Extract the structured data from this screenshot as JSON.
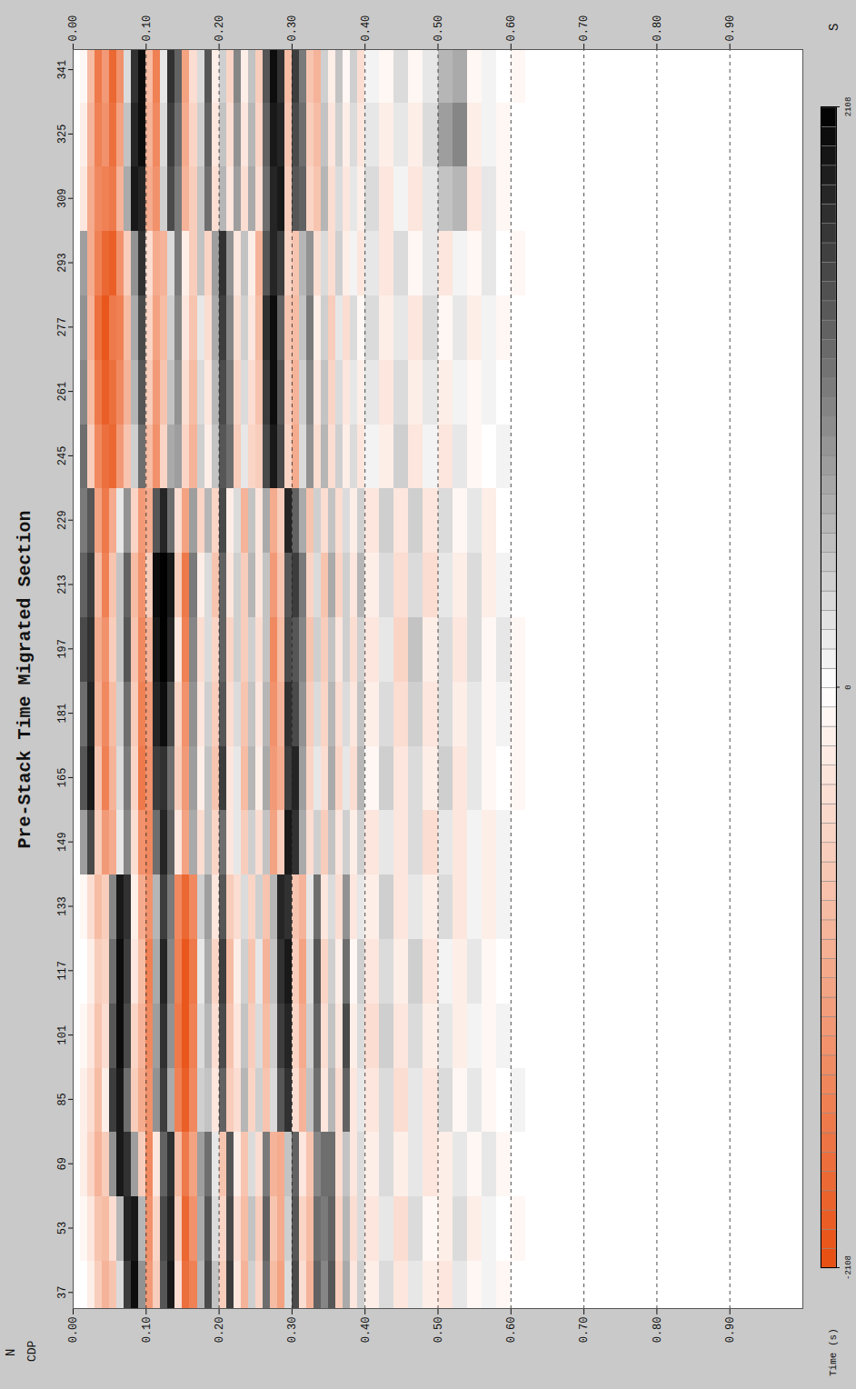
{
  "chart_data": {
    "type": "heatmap",
    "title": "Pre-Stack Time Migrated Section",
    "x_label": "CDP",
    "y_label": "Time (s)",
    "annotations": [
      "N",
      "S"
    ],
    "xlim": [
      33,
      346
    ],
    "xticks": [
      37,
      53,
      69,
      85,
      101,
      117,
      133,
      149,
      165,
      181,
      197,
      213,
      229,
      245,
      261,
      277,
      293,
      309,
      325,
      341
    ],
    "ylim": [
      0,
      1.0
    ],
    "yticks": [
      {
        "value": 0,
        "label": "0.00"
      },
      {
        "value": 0.1,
        "label": "0.10"
      },
      {
        "value": 0.2,
        "label": "0.20"
      },
      {
        "value": 0.3,
        "label": "0.30"
      },
      {
        "value": 0.4,
        "label": "0.40"
      },
      {
        "value": 0.5,
        "label": "0.50"
      },
      {
        "value": 0.6,
        "label": "0.60"
      },
      {
        "value": 0.7,
        "label": "0.70"
      },
      {
        "value": 0.8,
        "label": "0.80"
      },
      {
        "value": 0.9,
        "label": "0.90"
      }
    ],
    "grid": true,
    "cdp": [
      37,
      53,
      69,
      85,
      101,
      117,
      133,
      149,
      165,
      181,
      197,
      213,
      229,
      245,
      261,
      277,
      293,
      309,
      325,
      341
    ],
    "time": [
      0,
      0.01,
      0.02,
      0.03,
      0.04,
      0.05,
      0.06,
      0.07,
      0.08,
      0.09,
      0.1,
      0.11,
      0.12,
      0.13,
      0.14,
      0.15,
      0.16,
      0.17,
      0.18,
      0.19,
      0.2,
      0.21,
      0.22,
      0.23,
      0.24,
      0.25,
      0.26,
      0.27,
      0.28,
      0.29,
      0.3,
      0.31,
      0.32,
      0.33,
      0.34,
      0.35,
      0.36,
      0.37,
      0.38,
      0.39,
      0.4,
      0.42,
      0.44,
      0.46,
      0.48,
      0.5,
      0.52,
      0.54,
      0.56,
      0.58,
      0.6
    ],
    "amplitude": [
      [
        0,
        0,
        -200,
        -600,
        -900,
        -700,
        300,
        1600,
        2000,
        900,
        -1200,
        -600,
        1400,
        1900,
        -400,
        -1700,
        -1500,
        600,
        1500,
        500,
        -600,
        1600,
        -300,
        -900,
        400,
        -500,
        1200,
        -800,
        -1100,
        300,
        1500,
        -400,
        -900,
        1300,
        1000,
        1400,
        -600,
        700,
        -300,
        400,
        -200,
        300,
        -300,
        200,
        -200,
        -300,
        200,
        -100,
        100,
        -100,
        0
      ],
      [
        0,
        -100,
        -300,
        -700,
        -800,
        -400,
        600,
        1800,
        1900,
        600,
        -1300,
        -500,
        1500,
        1800,
        -600,
        -1800,
        -1300,
        700,
        1400,
        300,
        -500,
        1500,
        -400,
        -800,
        500,
        -600,
        1300,
        -700,
        -1000,
        400,
        1400,
        -500,
        -800,
        1200,
        1100,
        1300,
        -500,
        600,
        -400,
        300,
        -300,
        200,
        -400,
        300,
        -100,
        -200,
        300,
        -200,
        100,
        0,
        -100
      ],
      [
        0,
        -200,
        -500,
        -900,
        -600,
        900,
        1900,
        1700,
        800,
        -600,
        -1400,
        -300,
        1300,
        1700,
        -800,
        -1600,
        -1100,
        800,
        1200,
        200,
        -700,
        1400,
        -200,
        -700,
        300,
        -400,
        1100,
        -900,
        -1000,
        500,
        1300,
        -300,
        -700,
        1000,
        1200,
        1200,
        -400,
        500,
        -300,
        300,
        -200,
        300,
        -200,
        200,
        -300,
        -200,
        200,
        -100,
        200,
        -100,
        0
      ],
      [
        0,
        -200,
        -400,
        -800,
        -200,
        1600,
        1900,
        1200,
        -600,
        -1000,
        -1300,
        900,
        1600,
        700,
        -1500,
        -1900,
        -1400,
        400,
        500,
        -300,
        1300,
        -600,
        -400,
        600,
        -500,
        400,
        -700,
        300,
        1400,
        1700,
        -400,
        -900,
        500,
        1200,
        -300,
        600,
        -400,
        1300,
        -300,
        200,
        -300,
        300,
        -400,
        200,
        -300,
        300,
        -100,
        200,
        -100,
        0,
        100
      ],
      [
        0,
        -100,
        -300,
        -700,
        -400,
        1400,
        2000,
        1500,
        -500,
        -900,
        -1400,
        800,
        1700,
        900,
        -1600,
        -2000,
        -1500,
        300,
        600,
        -400,
        1500,
        -700,
        -300,
        500,
        -600,
        300,
        -800,
        400,
        1600,
        1800,
        -500,
        -1000,
        400,
        1300,
        -400,
        500,
        -300,
        1500,
        -200,
        300,
        -400,
        400,
        -300,
        300,
        -200,
        200,
        -200,
        100,
        -100,
        100,
        0
      ],
      [
        0,
        0,
        -200,
        -600,
        -500,
        1200,
        2000,
        1600,
        -300,
        -800,
        -1500,
        700,
        1800,
        1000,
        -1500,
        -2000,
        -1600,
        200,
        700,
        -500,
        1600,
        -800,
        -200,
        400,
        -700,
        200,
        -900,
        500,
        1700,
        1900,
        -600,
        -1100,
        300,
        1400,
        -500,
        400,
        -200,
        1200,
        -100,
        400,
        -300,
        300,
        -200,
        400,
        -300,
        100,
        -200,
        200,
        -100,
        0,
        0
      ],
      [
        0,
        -100,
        -400,
        -800,
        -600,
        1000,
        1900,
        1700,
        -200,
        -1000,
        -1300,
        600,
        1600,
        1100,
        -1400,
        -1800,
        -1400,
        400,
        800,
        -300,
        1400,
        -600,
        -400,
        300,
        -500,
        400,
        -700,
        600,
        1800,
        1700,
        -700,
        -900,
        200,
        1200,
        -300,
        300,
        -400,
        900,
        -300,
        200,
        -200,
        400,
        -300,
        200,
        -200,
        300,
        -300,
        100,
        -200,
        100,
        0
      ],
      [
        0,
        800,
        1500,
        -600,
        -1200,
        -1000,
        200,
        1000,
        -400,
        -1300,
        -1400,
        1200,
        1800,
        1300,
        -300,
        -1100,
        700,
        -400,
        500,
        -500,
        1200,
        -300,
        200,
        -600,
        400,
        -400,
        500,
        -1100,
        -600,
        1900,
        1700,
        700,
        -400,
        400,
        -600,
        500,
        -300,
        400,
        -200,
        400,
        -300,
        200,
        -300,
        300,
        -400,
        200,
        -300,
        100,
        -200,
        100,
        0
      ],
      [
        0,
        1400,
        1900,
        -700,
        -1500,
        -900,
        300,
        1100,
        -500,
        -1600,
        -1300,
        1600,
        1700,
        1200,
        -600,
        -1200,
        800,
        -200,
        500,
        -700,
        1600,
        -300,
        200,
        -800,
        600,
        -200,
        700,
        -1200,
        -1000,
        1600,
        1800,
        800,
        -500,
        200,
        -400,
        700,
        -500,
        200,
        -400,
        600,
        -100,
        400,
        -300,
        300,
        -200,
        400,
        -300,
        200,
        -100,
        0,
        -100
      ],
      [
        0,
        1200,
        1800,
        -900,
        -1400,
        -800,
        400,
        1200,
        -600,
        -1500,
        -1200,
        1800,
        2000,
        1500,
        -500,
        -1300,
        900,
        -300,
        400,
        -600,
        1400,
        -400,
        300,
        -700,
        500,
        -300,
        600,
        -1300,
        -900,
        1700,
        1500,
        900,
        -600,
        300,
        -500,
        600,
        -400,
        300,
        -300,
        500,
        -200,
        300,
        -400,
        400,
        -300,
        300,
        -200,
        200,
        -100,
        100,
        -100
      ],
      [
        0,
        1500,
        1700,
        -1000,
        -1300,
        -600,
        500,
        1400,
        -700,
        -1400,
        -900,
        1900,
        2100,
        1800,
        -300,
        -1500,
        1000,
        -400,
        300,
        -500,
        1300,
        -500,
        400,
        -600,
        400,
        -400,
        500,
        -1400,
        -800,
        1500,
        1400,
        1000,
        -700,
        400,
        -600,
        500,
        -300,
        400,
        -400,
        400,
        -300,
        200,
        -500,
        500,
        -200,
        300,
        -300,
        300,
        -100,
        200,
        -100
      ],
      [
        0,
        1300,
        1600,
        -800,
        -1500,
        -700,
        500,
        1300,
        -800,
        -1300,
        -600,
        2000,
        2100,
        1900,
        -600,
        -1600,
        1100,
        -200,
        300,
        -700,
        1300,
        -300,
        400,
        -600,
        600,
        -300,
        500,
        -1200,
        -700,
        1400,
        1600,
        1100,
        -500,
        300,
        -700,
        700,
        -500,
        400,
        -300,
        600,
        -200,
        300,
        -400,
        300,
        -400,
        200,
        -200,
        300,
        -200,
        100,
        0
      ],
      [
        0,
        1100,
        1400,
        -1100,
        -1600,
        -1000,
        200,
        900,
        -500,
        -1200,
        -1000,
        1400,
        1800,
        1200,
        -400,
        -1100,
        800,
        -500,
        600,
        -500,
        1500,
        -200,
        300,
        -900,
        500,
        -300,
        700,
        -1000,
        -600,
        1800,
        1300,
        700,
        -700,
        400,
        -400,
        500,
        -400,
        300,
        -200,
        400,
        -300,
        400,
        -300,
        400,
        -300,
        300,
        -100,
        200,
        -200,
        0,
        0
      ],
      [
        0,
        1200,
        -600,
        -1400,
        -1700,
        -1800,
        -1200,
        -700,
        400,
        1200,
        -800,
        -1300,
        -500,
        700,
        800,
        -500,
        -900,
        400,
        -200,
        500,
        1400,
        1200,
        -600,
        200,
        -500,
        -600,
        1500,
        1900,
        1500,
        -500,
        -1000,
        300,
        900,
        -400,
        600,
        -400,
        400,
        -200,
        300,
        -300,
        100,
        -200,
        400,
        -300,
        100,
        -300,
        200,
        -100,
        0,
        100,
        0
      ],
      [
        0,
        1000,
        -800,
        -1600,
        -1900,
        -1700,
        -1400,
        -900,
        600,
        1400,
        -600,
        -1200,
        -700,
        500,
        900,
        -400,
        -800,
        300,
        -300,
        600,
        1500,
        1100,
        -500,
        300,
        -400,
        -700,
        1600,
        2000,
        1400,
        -600,
        -900,
        400,
        1000,
        -300,
        500,
        -500,
        300,
        -300,
        200,
        -200,
        200,
        -300,
        300,
        -200,
        200,
        -200,
        100,
        -100,
        100,
        0,
        0
      ],
      [
        0,
        900,
        -900,
        -1700,
        -2000,
        -1600,
        -1500,
        -800,
        700,
        1500,
        -500,
        -1100,
        -800,
        400,
        1000,
        -300,
        -700,
        200,
        -400,
        700,
        1600,
        1000,
        -400,
        400,
        -300,
        -800,
        1700,
        2000,
        1300,
        -700,
        -800,
        500,
        1100,
        -200,
        400,
        -600,
        200,
        -400,
        300,
        -100,
        300,
        -200,
        200,
        -300,
        300,
        -100,
        200,
        -200,
        100,
        -100,
        0
      ],
      [
        0,
        800,
        -1000,
        -1500,
        -1800,
        -1900,
        -1300,
        -600,
        900,
        1700,
        -400,
        -1000,
        -900,
        300,
        1100,
        -200,
        -600,
        500,
        -500,
        800,
        1700,
        900,
        -300,
        500,
        -200,
        -900,
        1400,
        1800,
        1600,
        -500,
        -700,
        600,
        900,
        -400,
        300,
        -400,
        400,
        -200,
        100,
        -300,
        200,
        -300,
        300,
        -100,
        200,
        -300,
        100,
        -100,
        200,
        0,
        -100
      ],
      [
        0,
        -300,
        -1000,
        -1400,
        -1500,
        -1600,
        -900,
        700,
        1900,
        1800,
        -1000,
        -1300,
        400,
        1500,
        1100,
        -900,
        -600,
        500,
        1200,
        -400,
        600,
        -300,
        800,
        -400,
        700,
        -400,
        1200,
        1800,
        1900,
        -600,
        1400,
        1300,
        -500,
        -700,
        600,
        -400,
        300,
        -300,
        200,
        -200,
        300,
        -300,
        100,
        -300,
        200,
        500,
        600,
        -300,
        200,
        -100,
        0
      ],
      [
        0,
        -200,
        -900,
        -1500,
        -1300,
        -1700,
        -1100,
        500,
        1800,
        2000,
        -900,
        -1400,
        300,
        1600,
        1200,
        -1000,
        -500,
        400,
        1300,
        -300,
        500,
        -400,
        900,
        -300,
        600,
        -500,
        1300,
        1900,
        1800,
        -700,
        1500,
        1200,
        -600,
        -800,
        500,
        -300,
        400,
        -200,
        300,
        -300,
        200,
        -200,
        200,
        -200,
        300,
        800,
        1000,
        -200,
        100,
        -100,
        0
      ],
      [
        0,
        -100,
        -800,
        -1600,
        -1200,
        -1800,
        -1300,
        300,
        1700,
        2000,
        -800,
        -1500,
        200,
        1700,
        1300,
        -1100,
        -400,
        300,
        1400,
        -200,
        400,
        -500,
        1000,
        -200,
        500,
        -600,
        1400,
        2000,
        1700,
        -800,
        1600,
        1100,
        -700,
        -900,
        400,
        -200,
        500,
        -100,
        400,
        -400,
        100,
        -100,
        300,
        -100,
        200,
        600,
        700,
        -100,
        100,
        0,
        -100
      ]
    ],
    "colorbar": {
      "range": [
        -2108,
        2108
      ],
      "ticks": [
        -2108,
        0,
        2108
      ],
      "colors": [
        "#e84e10",
        "#ffffff",
        "#000000"
      ]
    }
  }
}
